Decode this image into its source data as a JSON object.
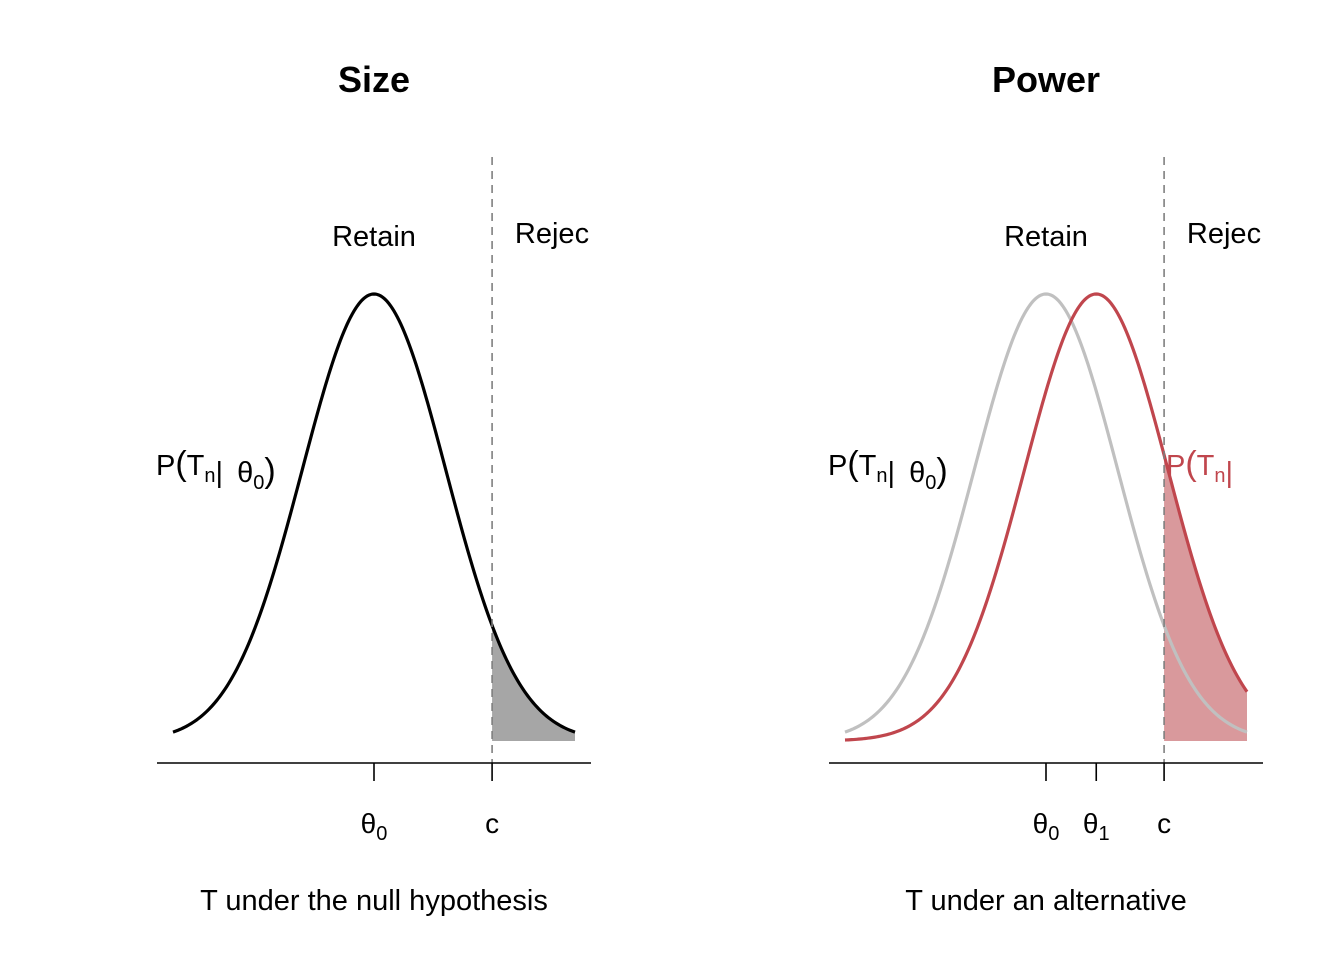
{
  "chart_data": [
    {
      "type": "line",
      "title": "Size",
      "xlabel": "T under the null hypothesis",
      "region_labels": {
        "retain": "Retain",
        "reject": "Rejec"
      },
      "ticks": [
        {
          "base": "θ",
          "sub": "0",
          "x": 0.0
        },
        {
          "base": "c",
          "sub": "",
          "x": 1.645
        }
      ],
      "xlim": [
        -2.8,
        2.8
      ],
      "grid": false,
      "legend": "none",
      "series": [
        {
          "mean": 0.0,
          "sd": 1.0,
          "color": "#000000",
          "stroke": "black",
          "label": {
            "main": "P",
            "tn": "T",
            "tn_sub": "n",
            "bar": "|",
            "theta": "θ",
            "theta_sub": "0"
          }
        }
      ],
      "shaded_region": {
        "from": 1.645,
        "color": "#a6a6a6",
        "series_index": 0
      },
      "critical_value": 1.645
    },
    {
      "type": "line",
      "title": "Power",
      "xlabel": "T under an alternative",
      "region_labels": {
        "retain": "Retain",
        "reject": "Rejec"
      },
      "ticks": [
        {
          "base": "θ",
          "sub": "0",
          "x": 0.0
        },
        {
          "base": "θ",
          "sub": "1",
          "x": 0.7
        },
        {
          "base": "c",
          "sub": "",
          "x": 1.645
        }
      ],
      "xlim": [
        -2.8,
        2.8
      ],
      "grid": false,
      "legend": "none",
      "series": [
        {
          "mean": 0.0,
          "sd": 1.0,
          "color": "#c0c0c0",
          "label": {
            "main": "P",
            "tn": "T",
            "tn_sub": "n",
            "bar": "|",
            "theta": "θ",
            "theta_sub": "0"
          }
        },
        {
          "mean": 0.7,
          "sd": 1.0,
          "color": "#c0464d",
          "label": {
            "main": "P",
            "tn": "T",
            "tn_sub": "n",
            "bar": "|"
          }
        }
      ],
      "shaded_region": {
        "from": 1.645,
        "color": "#d9999c",
        "series_index": 1
      },
      "critical_value": 1.645
    }
  ]
}
